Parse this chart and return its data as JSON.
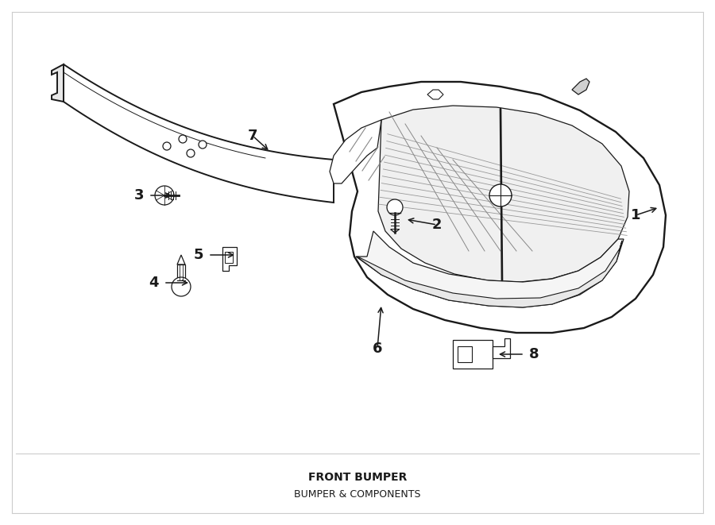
{
  "title": "FRONT BUMPER",
  "subtitle": "BUMPER & COMPONENTS",
  "background_color": "#ffffff",
  "line_color": "#1a1a1a",
  "title_fontsize": 10,
  "subtitle_fontsize": 9,
  "label_fontsize": 13,
  "figsize": [
    9.0,
    6.61
  ],
  "dpi": 100
}
